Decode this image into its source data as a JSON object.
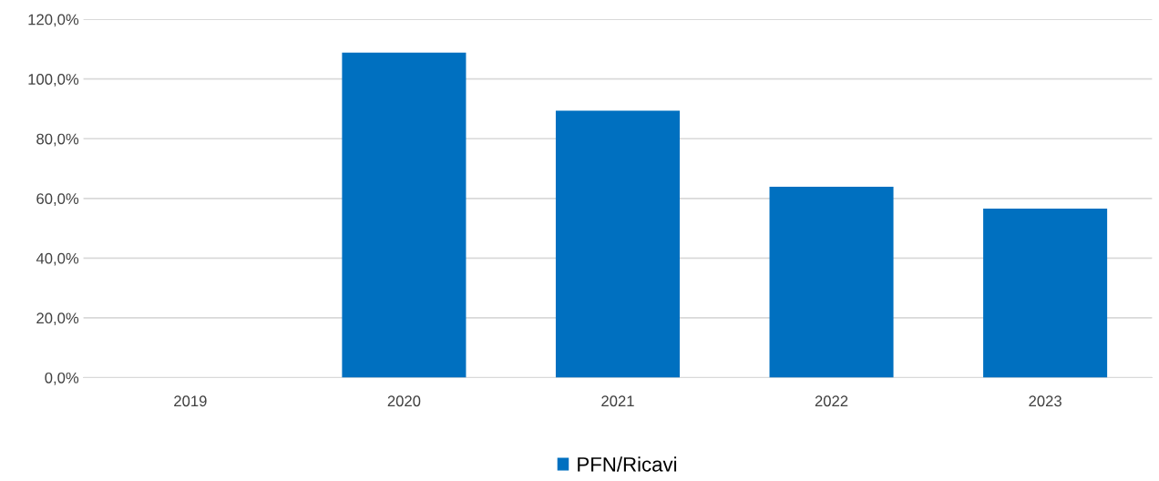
{
  "chart_data": {
    "type": "bar",
    "categories": [
      "2019",
      "2020",
      "2021",
      "2022",
      "2023"
    ],
    "series": [
      {
        "name": "PFN/Ricavi",
        "color": "#0070c0",
        "values": [
          null,
          108.8,
          89.4,
          63.9,
          56.6
        ]
      }
    ],
    "ylim": [
      0,
      120
    ],
    "yticks": [
      {
        "value": 0,
        "label": "0,0%"
      },
      {
        "value": 20,
        "label": "20,0%"
      },
      {
        "value": 40,
        "label": "40,0%"
      },
      {
        "value": 60,
        "label": "60,0%"
      },
      {
        "value": 80,
        "label": "80,0%"
      },
      {
        "value": 100,
        "label": "100,0%"
      },
      {
        "value": 120,
        "label": "120,0%"
      }
    ],
    "grid": "y",
    "legend": "bottom"
  }
}
